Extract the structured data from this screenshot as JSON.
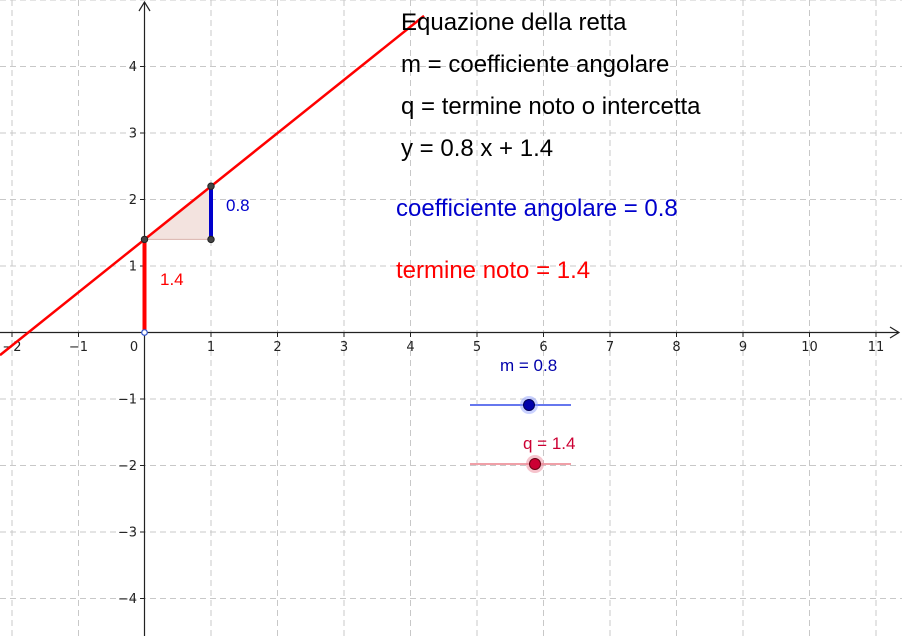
{
  "info_text": {
    "title": "Equazione della retta",
    "line_m": "m = coefficiente angolare",
    "line_q": "q = termine noto o intercetta",
    "equation": "y = 0.8 x + 1.4"
  },
  "dynamic_text": {
    "slope_label": "coefficiente angolare =  0.8",
    "intercept_label": "termine noto = 1.4"
  },
  "segment_labels": {
    "rise": "0.8",
    "intercept": "1.4"
  },
  "sliders": {
    "m": {
      "label": "m = 0.8",
      "value": 0.8,
      "color": "#0000aa"
    },
    "q": {
      "label": "q = 1.4",
      "value": 1.4,
      "color": "#cc0033"
    }
  },
  "axes": {
    "x_ticks": [
      "−2",
      "−1",
      "0",
      "1",
      "2",
      "3",
      "4",
      "5",
      "6",
      "7",
      "8",
      "9",
      "10",
      "11"
    ],
    "y_ticks": [
      "4",
      "3",
      "2",
      "1",
      "−1",
      "−2",
      "−3",
      "−4"
    ]
  },
  "colors": {
    "line": "#ff0000",
    "rise_segment": "#0000cc",
    "triangle_fill": "#f3e3df",
    "grid": "#c8c8c8",
    "slope_text": "#0000cc",
    "intercept_text": "#ff0000"
  }
}
